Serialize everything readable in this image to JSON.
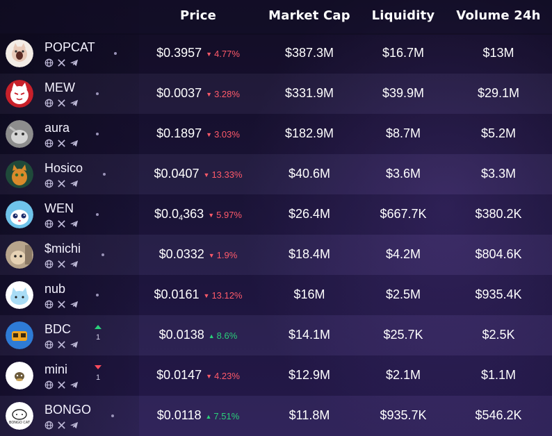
{
  "header": {
    "price": "Price",
    "market_cap": "Market Cap",
    "liquidity": "Liquidity",
    "volume": "Volume 24h"
  },
  "colors": {
    "down": "#ff5a6a",
    "up": "#2ad07a",
    "background": "#1a1330"
  },
  "rows": [
    {
      "name": "POPCAT",
      "price": "$0.3957",
      "change": "4.77%",
      "direction": "down",
      "market_cap": "$387.3M",
      "liquidity": "$16.7M",
      "volume": "$13M",
      "icons": [
        "globe-icon",
        "x-icon",
        "telegram-icon"
      ]
    },
    {
      "name": "MEW",
      "price": "$0.0037",
      "change": "3.28%",
      "direction": "down",
      "market_cap": "$331.9M",
      "liquidity": "$39.9M",
      "volume": "$29.1M",
      "icons": [
        "globe-icon",
        "x-icon",
        "telegram-icon"
      ]
    },
    {
      "name": "aura",
      "price": "$0.1897",
      "change": "3.03%",
      "direction": "down",
      "market_cap": "$182.9M",
      "liquidity": "$8.7M",
      "volume": "$5.2M",
      "icons": [
        "globe-icon",
        "x-icon",
        "telegram-icon"
      ]
    },
    {
      "name": "Hosico",
      "price": "$0.0407",
      "change": "13.33%",
      "direction": "down",
      "market_cap": "$40.6M",
      "liquidity": "$3.6M",
      "volume": "$3.3M",
      "icons": [
        "globe-icon",
        "x-icon",
        "telegram-icon"
      ]
    },
    {
      "name": "WEN",
      "price_main": "$0.0",
      "price_sub": "4",
      "price_tail": "363",
      "change": "5.97%",
      "direction": "down",
      "market_cap": "$26.4M",
      "liquidity": "$667.7K",
      "volume": "$380.2K",
      "icons": [
        "globe-icon",
        "x-icon",
        "telegram-icon"
      ]
    },
    {
      "name": "$michi",
      "price": "$0.0332",
      "change": "1.9%",
      "direction": "down",
      "market_cap": "$18.4M",
      "liquidity": "$4.2M",
      "volume": "$804.6K",
      "icons": [
        "globe-icon",
        "x-icon",
        "telegram-icon"
      ]
    },
    {
      "name": "nub",
      "price": "$0.0161",
      "change": "13.12%",
      "direction": "down",
      "market_cap": "$16M",
      "liquidity": "$2.5M",
      "volume": "$935.4K",
      "icons": [
        "globe-icon",
        "x-icon",
        "telegram-icon"
      ]
    },
    {
      "name": "BDC",
      "price": "$0.0138",
      "change": "8.6%",
      "direction": "up",
      "market_cap": "$14.1M",
      "liquidity": "$25.7K",
      "volume": "$2.5K",
      "vote": {
        "direction": "up",
        "count": "1"
      },
      "icons": [
        "globe-icon",
        "x-icon",
        "telegram-icon"
      ]
    },
    {
      "name": "mini",
      "price": "$0.0147",
      "change": "4.23%",
      "direction": "down",
      "market_cap": "$12.9M",
      "liquidity": "$2.1M",
      "volume": "$1.1M",
      "vote": {
        "direction": "down",
        "count": "1"
      },
      "icons": [
        "globe-icon",
        "x-icon",
        "telegram-icon"
      ]
    },
    {
      "name": "BONGO",
      "price": "$0.0118",
      "change": "7.51%",
      "direction": "up",
      "market_cap": "$11.8M",
      "liquidity": "$935.7K",
      "volume": "$546.2K",
      "avatar_text": "BONGO CAT",
      "icons": [
        "globe-icon",
        "x-icon",
        "telegram-icon"
      ]
    }
  ]
}
